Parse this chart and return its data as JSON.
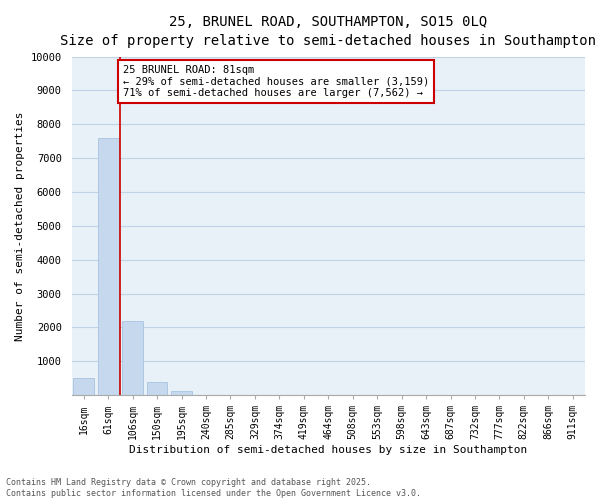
{
  "title1": "25, BRUNEL ROAD, SOUTHAMPTON, SO15 0LQ",
  "title2": "Size of property relative to semi-detached houses in Southampton",
  "xlabel": "Distribution of semi-detached houses by size in Southampton",
  "ylabel": "Number of semi-detached properties",
  "categories": [
    "16sqm",
    "61sqm",
    "106sqm",
    "150sqm",
    "195sqm",
    "240sqm",
    "285sqm",
    "329sqm",
    "374sqm",
    "419sqm",
    "464sqm",
    "508sqm",
    "553sqm",
    "598sqm",
    "643sqm",
    "687sqm",
    "732sqm",
    "777sqm",
    "822sqm",
    "866sqm",
    "911sqm"
  ],
  "values": [
    500,
    7600,
    2200,
    380,
    120,
    0,
    0,
    0,
    0,
    0,
    0,
    0,
    0,
    0,
    0,
    0,
    0,
    0,
    0,
    0,
    0
  ],
  "bar_color": "#c5d8ee",
  "bar_edge_color": "#a0bedd",
  "vline_x_index": 1.5,
  "subject_label": "25 BRUNEL ROAD: 81sqm",
  "pct_smaller": 29,
  "n_smaller": 3159,
  "pct_larger": 71,
  "n_larger": 7562,
  "annotation_box_color": "#ffffff",
  "annotation_box_edge_color": "#cc0000",
  "vline_color": "#cc0000",
  "ylim": [
    0,
    10000
  ],
  "yticks": [
    0,
    1000,
    2000,
    3000,
    4000,
    5000,
    6000,
    7000,
    8000,
    9000,
    10000
  ],
  "grid_color": "#c0d4e8",
  "plot_bg_color": "#e8f0f8",
  "fig_bg_color": "#ffffff",
  "footer1": "Contains HM Land Registry data © Crown copyright and database right 2025.",
  "footer2": "Contains public sector information licensed under the Open Government Licence v3.0.",
  "title_fontsize": 10,
  "subtitle_fontsize": 9,
  "tick_fontsize": 7,
  "ylabel_fontsize": 8,
  "xlabel_fontsize": 8,
  "footer_fontsize": 6,
  "annot_fontsize": 7.5
}
